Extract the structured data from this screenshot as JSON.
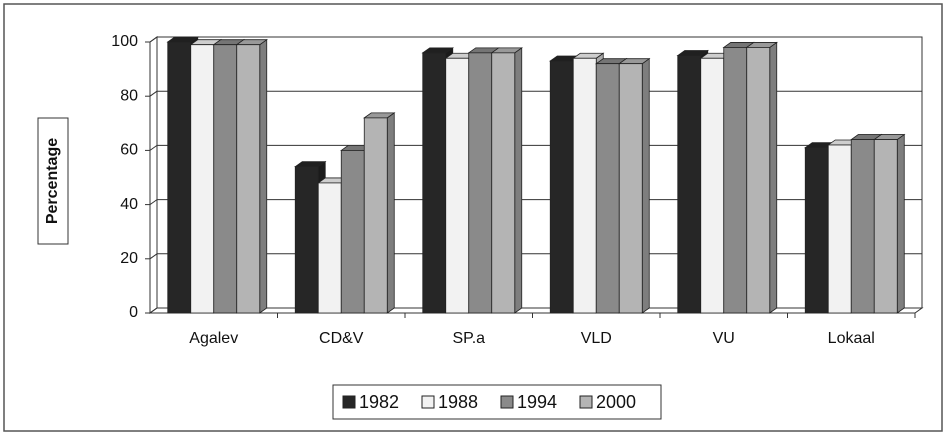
{
  "chart_data": {
    "type": "bar3d",
    "y_label": "Percentage",
    "categories": [
      "Agalev",
      "CD&V",
      "SP.a",
      "VLD",
      "VU",
      "Lokaal"
    ],
    "series": [
      {
        "name": "1982",
        "color": "#262626",
        "values": [
          100,
          54,
          96,
          93,
          95,
          61
        ]
      },
      {
        "name": "1988",
        "color": "#f2f2f2",
        "values": [
          99,
          48,
          94,
          94,
          94,
          62
        ]
      },
      {
        "name": "1994",
        "color": "#8a8a8a",
        "values": [
          99,
          60,
          96,
          92,
          98,
          64
        ]
      },
      {
        "name": "2000",
        "color": "#b4b4b4",
        "values": [
          99,
          72,
          96,
          92,
          98,
          64
        ]
      }
    ],
    "ylim": [
      0,
      100
    ],
    "yticks": [
      0,
      20,
      40,
      60,
      80,
      100
    ],
    "grid": true
  }
}
